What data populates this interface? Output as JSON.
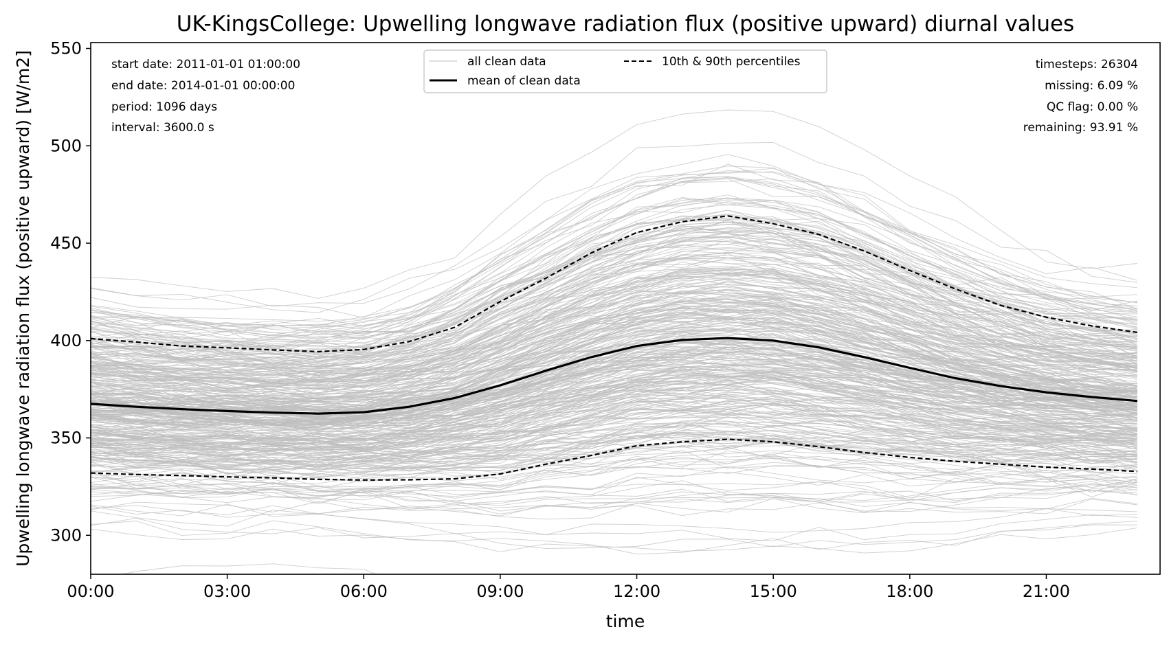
{
  "chart_data": {
    "type": "line",
    "title": "UK-KingsCollege: Upwelling longwave radiation flux (positive upward) diurnal values",
    "xlabel": "time",
    "ylabel": "Upwelling longwave radiation flux (positive upward) [W/m2]",
    "xlim": [
      0,
      23.5
    ],
    "ylim": [
      280,
      553
    ],
    "x_ticks": [
      0,
      3,
      6,
      9,
      12,
      15,
      18,
      21
    ],
    "x_tick_labels": [
      "00:00",
      "03:00",
      "06:00",
      "09:00",
      "12:00",
      "15:00",
      "18:00",
      "21:00"
    ],
    "y_ticks": [
      300,
      350,
      400,
      450,
      500,
      550
    ],
    "y_tick_labels": [
      "300",
      "350",
      "400",
      "450",
      "500",
      "550"
    ],
    "x": [
      0,
      1,
      2,
      3,
      4,
      5,
      6,
      7,
      8,
      9,
      10,
      11,
      12,
      13,
      14,
      15,
      16,
      17,
      18,
      19,
      20,
      21,
      22,
      23
    ],
    "series": [
      {
        "name": "mean of clean data",
        "style": "solid",
        "color": "#000000",
        "values": [
          367.5,
          366.0,
          364.8,
          363.8,
          363.0,
          362.5,
          363.2,
          366.0,
          370.5,
          377.0,
          384.5,
          391.5,
          397.2,
          400.3,
          401.3,
          400.0,
          396.5,
          391.5,
          386.0,
          380.7,
          376.6,
          373.4,
          371.0,
          369.0
        ]
      },
      {
        "name": "10th & 90th percentiles",
        "style": "dashed",
        "color": "#000000",
        "values": [
          401.0,
          399.2,
          397.2,
          396.3,
          395.2,
          394.3,
          395.4,
          399.5,
          406.8,
          420.0,
          432.0,
          445.0,
          455.5,
          461.0,
          464.0,
          460.0,
          454.5,
          446.0,
          436.0,
          426.5,
          418.0,
          412.0,
          407.5,
          404.2
        ]
      },
      {
        "name": "",
        "style": "dashed",
        "color": "#000000",
        "values": [
          332.0,
          331.2,
          330.7,
          330.0,
          329.5,
          328.7,
          328.4,
          328.5,
          329.0,
          331.5,
          336.5,
          341.0,
          346.0,
          348.0,
          349.3,
          348.0,
          345.5,
          342.5,
          340.0,
          338.0,
          336.5,
          335.0,
          334.0,
          332.8
        ]
      }
    ],
    "background_series": {
      "name": "all clean data",
      "color": "#bdbdbd",
      "count": 1096
    },
    "legend": {
      "placement": "top-center",
      "entries": [
        "all clean data",
        "10th & 90th percentiles",
        "mean of clean data"
      ]
    },
    "info_left": [
      "start date: 2011-01-01 01:00:00",
      "end date: 2014-01-01 00:00:00",
      "period: 1096 days",
      "interval: 3600.0 s"
    ],
    "info_right": [
      "timesteps: 26304",
      "missing: 6.09 %",
      "QC flag: 0.00 %",
      "remaining: 93.91 %"
    ],
    "grid": false
  }
}
